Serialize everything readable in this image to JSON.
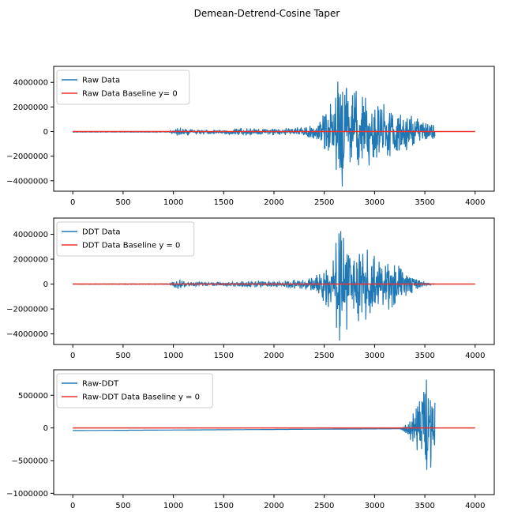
{
  "figure": {
    "suptitle": "Demean-Detrend-Cosine Taper"
  },
  "colors": {
    "data_line": "#1f77b4",
    "baseline": "#e8322d",
    "axes": "#000000"
  },
  "chart_data": [
    {
      "type": "line",
      "xlim": [
        -190,
        4190
      ],
      "ylim": [
        -4850000,
        5300000
      ],
      "xticks": [
        0,
        500,
        1000,
        1500,
        2000,
        2500,
        3000,
        3500,
        4000
      ],
      "yticks": [
        -4000000,
        -2000000,
        0,
        2000000,
        4000000
      ],
      "ytick_labels": [
        "−4000000",
        "−2000000",
        "0",
        "2000000",
        "4000000"
      ],
      "legend": "upper-left",
      "series": [
        {
          "name": "Raw Data",
          "kind": "waveform",
          "x_range": [
            0,
            3600
          ],
          "envelope": [
            {
              "x": 0,
              "amp": 20000
            },
            {
              "x": 960,
              "amp": 30000
            },
            {
              "x": 1000,
              "amp": 250000
            },
            {
              "x": 1050,
              "amp": 400000
            },
            {
              "x": 1200,
              "amp": 200000
            },
            {
              "x": 1500,
              "amp": 150000
            },
            {
              "x": 1700,
              "amp": 350000
            },
            {
              "x": 1900,
              "amp": 250000
            },
            {
              "x": 2100,
              "amp": 300000
            },
            {
              "x": 2300,
              "amp": 450000
            },
            {
              "x": 2450,
              "amp": 900000
            },
            {
              "x": 2550,
              "amp": 2300000
            },
            {
              "x": 2600,
              "amp": 3400000
            },
            {
              "x": 2650,
              "amp": 4800000
            },
            {
              "x": 2700,
              "amp": 4300000
            },
            {
              "x": 2800,
              "amp": 3600000
            },
            {
              "x": 2900,
              "amp": 3200000
            },
            {
              "x": 3000,
              "amp": 2600000
            },
            {
              "x": 3100,
              "amp": 2300000
            },
            {
              "x": 3200,
              "amp": 2100000
            },
            {
              "x": 3300,
              "amp": 1700000
            },
            {
              "x": 3400,
              "amp": 1200000
            },
            {
              "x": 3500,
              "amp": 900000
            },
            {
              "x": 3600,
              "amp": 600000
            }
          ],
          "offset": -30000
        },
        {
          "name": "Raw Data Baseline y= 0",
          "kind": "baseline",
          "x": [
            0,
            4000
          ],
          "y": [
            0,
            0
          ]
        }
      ]
    },
    {
      "type": "line",
      "xlim": [
        -190,
        4190
      ],
      "ylim": [
        -4850000,
        5300000
      ],
      "xticks": [
        0,
        500,
        1000,
        1500,
        2000,
        2500,
        3000,
        3500,
        4000
      ],
      "yticks": [
        -4000000,
        -2000000,
        0,
        2000000,
        4000000
      ],
      "ytick_labels": [
        "−4000000",
        "−2000000",
        "0",
        "2000000",
        "4000000"
      ],
      "legend": "upper-left",
      "series": [
        {
          "name": "DDT Data",
          "kind": "waveform",
          "x_range": [
            0,
            3600
          ],
          "envelope": [
            {
              "x": 0,
              "amp": 15000
            },
            {
              "x": 960,
              "amp": 30000
            },
            {
              "x": 1000,
              "amp": 250000
            },
            {
              "x": 1050,
              "amp": 400000
            },
            {
              "x": 1200,
              "amp": 200000
            },
            {
              "x": 1500,
              "amp": 150000
            },
            {
              "x": 1700,
              "amp": 350000
            },
            {
              "x": 1900,
              "amp": 250000
            },
            {
              "x": 2100,
              "amp": 300000
            },
            {
              "x": 2300,
              "amp": 450000
            },
            {
              "x": 2450,
              "amp": 900000
            },
            {
              "x": 2550,
              "amp": 2300000
            },
            {
              "x": 2600,
              "amp": 3400000
            },
            {
              "x": 2650,
              "amp": 4800000
            },
            {
              "x": 2700,
              "amp": 4300000
            },
            {
              "x": 2800,
              "amp": 3600000
            },
            {
              "x": 2900,
              "amp": 3200000
            },
            {
              "x": 3000,
              "amp": 2600000
            },
            {
              "x": 3100,
              "amp": 2300000
            },
            {
              "x": 3200,
              "amp": 1900000
            },
            {
              "x": 3300,
              "amp": 1200000
            },
            {
              "x": 3400,
              "amp": 600000
            },
            {
              "x": 3500,
              "amp": 200000
            },
            {
              "x": 3600,
              "amp": 10000
            }
          ],
          "offset": 0
        },
        {
          "name": "DDT Data Baseline y = 0",
          "kind": "baseline",
          "x": [
            0,
            4000
          ],
          "y": [
            0,
            0
          ]
        }
      ]
    },
    {
      "type": "line",
      "xlim": [
        -190,
        4190
      ],
      "ylim": [
        -1020000,
        890000
      ],
      "xticks": [
        0,
        500,
        1000,
        1500,
        2000,
        2500,
        3000,
        3500,
        4000
      ],
      "yticks": [
        -1000000,
        -500000,
        0,
        500000
      ],
      "ytick_labels": [
        "−1000000",
        "−500000",
        "0",
        "500000"
      ],
      "legend": "upper-left",
      "series": [
        {
          "name": "Raw-DDT",
          "kind": "waveform",
          "x_range": [
            0,
            3600
          ],
          "envelope": [
            {
              "x": 0,
              "amp": 0
            },
            {
              "x": 3260,
              "amp": 0
            },
            {
              "x": 3280,
              "amp": 40000
            },
            {
              "x": 3330,
              "amp": 120000
            },
            {
              "x": 3380,
              "amp": 250000
            },
            {
              "x": 3430,
              "amp": 420000
            },
            {
              "x": 3480,
              "amp": 600000
            },
            {
              "x": 3520,
              "amp": 800000
            },
            {
              "x": 3560,
              "amp": 700000
            },
            {
              "x": 3600,
              "amp": 550000
            }
          ],
          "offset_start": -40000,
          "offset_end": -10000
        },
        {
          "name": "Raw-DDT Data Baseline y = 0",
          "kind": "baseline",
          "x": [
            0,
            4000
          ],
          "y": [
            0,
            0
          ]
        }
      ]
    }
  ]
}
